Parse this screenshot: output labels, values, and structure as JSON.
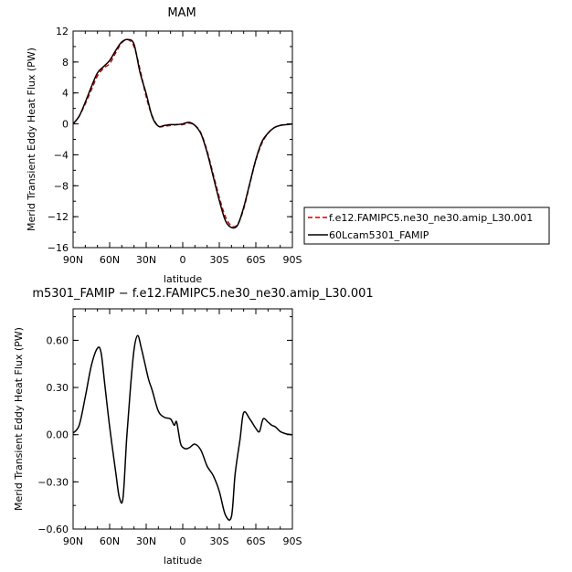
{
  "chart_data": [
    {
      "type": "line",
      "title": "MAM",
      "xlabel": "latitude",
      "ylabel": "Merid Transient Eddy Heat Flux (PW)",
      "x_tick_labels": [
        "90N",
        "60N",
        "30N",
        "0",
        "30S",
        "60S",
        "90S"
      ],
      "x_ticks": [
        90,
        60,
        30,
        0,
        -30,
        -60,
        -90
      ],
      "xlim": [
        90,
        -90
      ],
      "ylim": [
        -16,
        12
      ],
      "y_ticks": [
        12,
        8,
        4,
        0,
        -4,
        -8,
        -12,
        -16
      ],
      "y_tick_labels": [
        "12",
        "8",
        "4",
        "0",
        "−4",
        "−8",
        "−12",
        "−16"
      ],
      "legend_position": "right",
      "series": [
        {
          "name": "f.e12.FAMIPC5.ne30_ne30.amip_L30.001",
          "color": "#cc0000",
          "dash": true,
          "x": [
            90,
            85,
            80,
            75,
            70,
            65,
            60,
            55,
            50,
            45,
            40,
            35,
            30,
            25,
            20,
            15,
            10,
            5,
            0,
            -5,
            -10,
            -15,
            -20,
            -25,
            -30,
            -35,
            -40,
            -45,
            -50,
            -55,
            -60,
            -65,
            -70,
            -75,
            -80,
            -85,
            -90
          ],
          "y": [
            0,
            1.0,
            2.6,
            4.4,
            6.2,
            7.2,
            7.8,
            9.2,
            10.5,
            10.9,
            10.0,
            7.0,
            3.5,
            1.0,
            -0.3,
            -0.3,
            -0.2,
            -0.1,
            -0.1,
            0.1,
            -0.2,
            -1.2,
            -3.5,
            -6.5,
            -9.5,
            -12.0,
            -13.2,
            -13.0,
            -11.0,
            -7.8,
            -4.7,
            -2.5,
            -1.2,
            -0.5,
            -0.2,
            -0.1,
            0
          ]
        },
        {
          "name": "60Lcam5301_FAMIP",
          "color": "#000000",
          "dash": false,
          "x": [
            90,
            85,
            80,
            75,
            70,
            65,
            60,
            55,
            50,
            45,
            40,
            35,
            30,
            25,
            20,
            15,
            10,
            5,
            0,
            -5,
            -10,
            -15,
            -20,
            -25,
            -30,
            -35,
            -40,
            -45,
            -50,
            -55,
            -60,
            -65,
            -70,
            -75,
            -80,
            -85,
            -90
          ],
          "y": [
            0,
            1.0,
            2.8,
            4.8,
            6.6,
            7.4,
            8.2,
            9.5,
            10.6,
            10.9,
            10.3,
            6.6,
            3.9,
            0.9,
            -0.3,
            -0.2,
            -0.1,
            -0.1,
            0,
            0.2,
            -0.2,
            -1.3,
            -3.7,
            -6.8,
            -9.9,
            -12.5,
            -13.4,
            -13.1,
            -10.8,
            -7.7,
            -4.6,
            -2.3,
            -1.2,
            -0.5,
            -0.2,
            -0.1,
            0
          ]
        }
      ]
    },
    {
      "type": "line",
      "title": "m5301_FAMIP − f.e12.FAMIPC5.ne30_ne30.amip_L30.001",
      "xlabel": "latitude",
      "ylabel": "Merid Transient Eddy Heat Flux (PW)",
      "x_tick_labels": [
        "90N",
        "60N",
        "30N",
        "0",
        "30S",
        "60S",
        "90S"
      ],
      "x_ticks": [
        90,
        60,
        30,
        0,
        -30,
        -60,
        -90
      ],
      "xlim": [
        90,
        -90
      ],
      "ylim": [
        -0.6,
        0.8
      ],
      "y_ticks": [
        0.6,
        0.3,
        0,
        -0.3,
        -0.6
      ],
      "y_tick_labels": [
        "0.60",
        "0.30",
        "0.00",
        "−0.30",
        "−0.60"
      ],
      "series": [
        {
          "color": "#000000",
          "dash": false,
          "x": [
            90,
            85,
            80,
            75,
            70,
            67,
            64,
            60,
            55,
            52,
            49,
            46,
            43,
            40,
            37,
            34,
            31,
            28,
            25,
            20,
            15,
            10,
            7,
            5,
            2,
            0,
            -3,
            -6,
            -10,
            -15,
            -20,
            -25,
            -30,
            -35,
            -40,
            -43,
            -47,
            -50,
            -55,
            -60,
            -63,
            -66,
            -70,
            -73,
            -76,
            -80,
            -85,
            -90
          ],
          "y": [
            0.01,
            0.06,
            0.24,
            0.44,
            0.55,
            0.52,
            0.32,
            0.05,
            -0.24,
            -0.4,
            -0.4,
            -0.02,
            0.29,
            0.54,
            0.63,
            0.55,
            0.45,
            0.35,
            0.28,
            0.15,
            0.11,
            0.1,
            0.06,
            0.08,
            -0.05,
            -0.08,
            -0.09,
            -0.08,
            -0.06,
            -0.1,
            -0.2,
            -0.26,
            -0.36,
            -0.51,
            -0.52,
            -0.25,
            -0.03,
            0.14,
            0.1,
            0.04,
            0.02,
            0.1,
            0.08,
            0.06,
            0.05,
            0.02,
            0.005,
            0.0
          ]
        }
      ]
    }
  ]
}
